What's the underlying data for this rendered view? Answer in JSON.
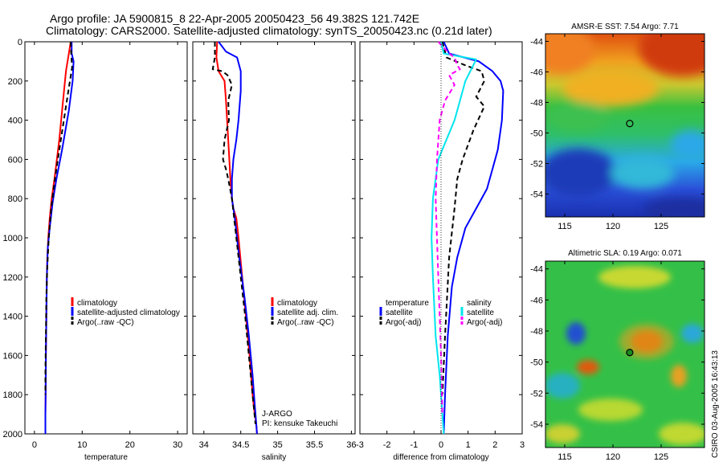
{
  "header": {
    "line1": "Argo profile: JA 5900815_8 22-Apr-2005 20050423_56 49.382S 121.742E",
    "line2": "Climatology: CARS2000. Satellite-adjusted climatology: synTS_20050423.nc (0.21d later)"
  },
  "side_note": "CSIRO 03-Aug-2005 16:43:13",
  "colors": {
    "red": "#ff0000",
    "blue": "#0000ff",
    "black": "#000000",
    "cyan": "#00e5ee",
    "magenta": "#ff00ff"
  },
  "chart_data": [
    {
      "type": "line",
      "xlabel": "temperature",
      "ylim": [
        2000,
        0
      ],
      "xlim": [
        -2,
        32
      ],
      "xticks": [
        0,
        10,
        20,
        30
      ],
      "yticks": [
        0,
        200,
        400,
        600,
        800,
        1000,
        1200,
        1400,
        1600,
        1800,
        2000
      ],
      "legend": {
        "position": "lower-right",
        "entries": [
          "climatology",
          "satellite-adjusted climatology",
          "Argo(..raw -QC)"
        ]
      },
      "series": [
        {
          "name": "climatology",
          "color": "#ff0000",
          "dash": "none",
          "x": [
            7.6,
            7.2,
            6.6,
            6.0,
            5.2,
            4.2,
            3.6,
            3.2,
            2.9,
            2.7,
            2.6,
            2.5,
            2.4,
            2.35,
            2.3,
            2.3
          ],
          "y": [
            0,
            60,
            150,
            300,
            500,
            700,
            800,
            900,
            1000,
            1100,
            1200,
            1400,
            1600,
            1800,
            1900,
            2000
          ]
        },
        {
          "name": "satellite-adjusted climatology",
          "color": "#0000ff",
          "dash": "none",
          "x": [
            7.8,
            7.8,
            8.2,
            8.0,
            7.2,
            5.8,
            4.6,
            3.8,
            3.2,
            2.8,
            2.6,
            2.5,
            2.4,
            2.35,
            2.3,
            2.3
          ],
          "y": [
            0,
            60,
            100,
            200,
            350,
            550,
            700,
            820,
            950,
            1050,
            1200,
            1400,
            1600,
            1800,
            1900,
            2000
          ]
        },
        {
          "name": "Argo(..raw -QC)",
          "color": "#000000",
          "dash": "6,4",
          "x": [
            7.6,
            7.7,
            7.9,
            7.3,
            6.6,
            5.4,
            4.3,
            3.5,
            3.0,
            2.7,
            2.5,
            2.4,
            2.3,
            2.3
          ],
          "y": [
            0,
            60,
            130,
            220,
            330,
            520,
            700,
            850,
            1000,
            1150,
            1300,
            1500,
            1700,
            1800
          ]
        }
      ]
    },
    {
      "type": "line",
      "xlabel": "salinity",
      "ylim": [
        2000,
        0
      ],
      "xlim": [
        33.85,
        36.05
      ],
      "xticks": [
        34,
        34.5,
        35,
        35.5,
        36
      ],
      "legend": {
        "position": "lower-right",
        "entries": [
          "climatology",
          "satellite adj. clim.",
          "Argo(..raw -QC)"
        ]
      },
      "annotation": [
        "J-ARGO",
        "PI: kensuke Takeuchi"
      ],
      "series": [
        {
          "name": "climatology",
          "color": "#ff0000",
          "dash": "none",
          "x": [
            34.18,
            34.17,
            34.2,
            34.28,
            34.3,
            34.33,
            34.36,
            34.38,
            34.4,
            34.44,
            34.47,
            34.52,
            34.57,
            34.62,
            34.66,
            34.69,
            34.71,
            34.72
          ],
          "y": [
            0,
            80,
            150,
            200,
            300,
            500,
            700,
            800,
            850,
            900,
            1000,
            1200,
            1400,
            1600,
            1800,
            1900,
            1950,
            2000
          ]
        },
        {
          "name": "satellite adj. clim.",
          "color": "#0000ff",
          "dash": "none",
          "x": [
            34.2,
            34.3,
            34.45,
            34.5,
            34.5,
            34.47,
            34.44,
            34.4,
            34.38,
            34.38,
            34.42,
            34.48,
            34.55,
            34.61,
            34.66,
            34.69,
            34.71,
            34.72
          ],
          "y": [
            0,
            50,
            80,
            150,
            250,
            400,
            500,
            600,
            700,
            800,
            900,
            1100,
            1300,
            1500,
            1700,
            1850,
            1950,
            2000
          ]
        },
        {
          "name": "Argo(..raw -QC)",
          "color": "#000000",
          "dash": "6,4",
          "x": [
            34.15,
            34.15,
            34.12,
            34.25,
            34.32,
            34.38,
            34.33,
            34.34,
            34.28,
            34.26,
            34.3,
            34.33,
            34.38,
            34.44,
            34.5,
            34.56,
            34.61,
            34.66,
            34.7
          ],
          "y": [
            0,
            80,
            140,
            150,
            170,
            220,
            300,
            400,
            500,
            600,
            650,
            700,
            800,
            1000,
            1200,
            1400,
            1600,
            1800,
            1950
          ]
        }
      ]
    },
    {
      "type": "line",
      "xlabel": "difference from climatology",
      "ylim": [
        2000,
        0
      ],
      "xlim": [
        -3,
        3
      ],
      "xticks": [
        -3,
        -2,
        -1,
        0,
        1,
        2,
        3
      ],
      "legend": {
        "position": "lower-right",
        "groups": [
          {
            "title": "temperature",
            "entries": [
              "satellite",
              "Argo(-adj)"
            ]
          },
          {
            "title": "salinity",
            "entries": [
              "satellite",
              "Argo(-adj)"
            ]
          }
        ]
      },
      "series": [
        {
          "name": "satellite",
          "group": "temperature",
          "color": "#0000ff",
          "dash": "none",
          "x": [
            0.1,
            0.3,
            1.4,
            1.9,
            2.2,
            2.3,
            2.25,
            2.1,
            1.9,
            1.7,
            1.3,
            0.9,
            0.6,
            0.4,
            0.25,
            0.15,
            0.1
          ],
          "y": [
            0,
            60,
            100,
            150,
            200,
            250,
            400,
            550,
            650,
            750,
            850,
            950,
            1100,
            1250,
            1500,
            1800,
            2000
          ]
        },
        {
          "name": "Argo(-adj)",
          "group": "temperature",
          "color": "#000000",
          "dash": "6,4",
          "x": [
            0.05,
            0.2,
            0.9,
            1.5,
            1.6,
            1.3,
            1.6,
            1.2,
            0.8,
            0.6,
            0.5,
            0.3,
            0.15,
            0.05
          ],
          "y": [
            0,
            80,
            120,
            150,
            200,
            280,
            330,
            450,
            600,
            700,
            850,
            1100,
            1500,
            1800
          ]
        },
        {
          "name": "satellite",
          "group": "salinity",
          "color": "#00e5ee",
          "dash": "none",
          "x": [
            0.0,
            0.1,
            1.3,
            0.9,
            0.7,
            0.5,
            0.2,
            -0.1,
            -0.3,
            -0.35,
            -0.3,
            -0.2,
            -0.05,
            0.05,
            0.1
          ],
          "y": [
            0,
            60,
            90,
            200,
            300,
            400,
            500,
            600,
            800,
            1000,
            1200,
            1500,
            1700,
            1900,
            2000
          ]
        },
        {
          "name": "Argo(-adj)",
          "group": "salinity",
          "color": "#ff00ff",
          "dash": "6,4",
          "x": [
            -0.1,
            0.3,
            0.5,
            0.6,
            0.7,
            0.3,
            0.5,
            0.15,
            -0.05,
            -0.15,
            -0.2,
            -0.1,
            0.0,
            0.05
          ],
          "y": [
            0,
            60,
            80,
            120,
            140,
            170,
            220,
            300,
            400,
            600,
            800,
            1200,
            1600,
            1900
          ]
        }
      ]
    },
    {
      "type": "heatmap",
      "title": "AMSR-E SST: 7.54 Argo: 7.71",
      "xlim": [
        113,
        129.5
      ],
      "ylim": [
        -55.5,
        -43.5
      ],
      "xticks": [
        115,
        120,
        125
      ],
      "yticks": [
        -44,
        -46,
        -48,
        -50,
        -52,
        -54
      ],
      "marker": {
        "lon": 121.742,
        "lat": -49.382
      },
      "colormap": "jet"
    },
    {
      "type": "heatmap",
      "title": "Altimetric SLA: 0.19 Argo: 0.071",
      "xlim": [
        113,
        129.5
      ],
      "ylim": [
        -55.5,
        -43.5
      ],
      "xticks": [
        115,
        120,
        125
      ],
      "yticks": [
        -44,
        -46,
        -48,
        -50,
        -52,
        -54
      ],
      "marker": {
        "lon": 121.742,
        "lat": -49.382
      },
      "colormap": "jet"
    }
  ]
}
